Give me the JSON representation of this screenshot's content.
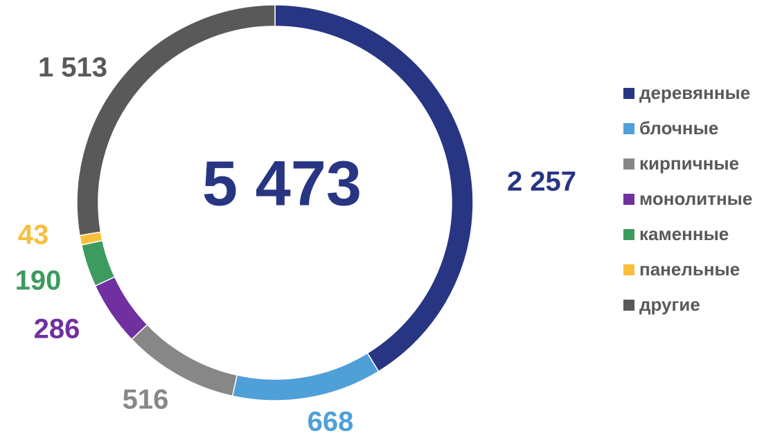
{
  "chart_data": {
    "type": "donut",
    "center_text": "5 473",
    "categories": [
      "деревянные",
      "блочные",
      "кирпичные",
      "монолитные",
      "каменные",
      "панельные",
      "другие"
    ],
    "values": [
      2257,
      668,
      516,
      286,
      190,
      43,
      1513
    ],
    "value_labels": [
      "2 257",
      "668",
      "516",
      "286",
      "190",
      "43",
      "1 513"
    ],
    "colors": [
      "#283583",
      "#4f9fd8",
      "#878787",
      "#7030a0",
      "#3d9b5f",
      "#f9bf3b",
      "#595959"
    ],
    "legend": "right"
  }
}
